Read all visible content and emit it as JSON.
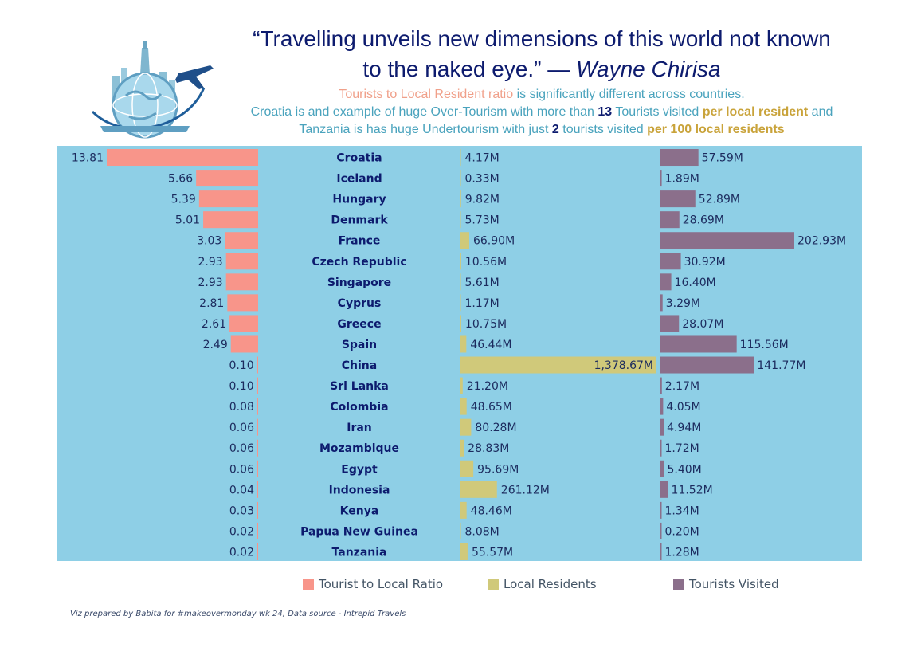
{
  "header": {
    "quote_line1": "“Travelling unveils new dimensions of this world not known",
    "quote_line2_text": "to the naked eye.”  —",
    "quote_author": "Wayne Chirisa",
    "sub_line1_highlight": "Tourists to Local Resident ratio",
    "sub_line1_rest": "is significantly different across countries.",
    "sub_line2_a": "Croatia is and example of huge Over-Tourism with more than",
    "sub_line2_num": "13",
    "sub_line2_b": "Tourists visited",
    "sub_line2_gold": "per local resident",
    "sub_line2_c": "and",
    "sub_line3_a": "Tanzania is has huge Undertourism with just",
    "sub_line3_num": "2",
    "sub_line3_b": "tourists visited",
    "sub_line3_gold": "per 100 local residents"
  },
  "logo": {
    "icon": "globe-airplane-icon"
  },
  "colors": {
    "panel": "#8ecfe6",
    "ratio": "#f8958a",
    "residents": "#d0c97a",
    "tourists": "#8b6f8b",
    "country_text": "#0d1b6e",
    "value_text": "#1c2b5e"
  },
  "chart_data": {
    "type": "bar",
    "categories": [
      "Croatia",
      "Iceland",
      "Hungary",
      "Denmark",
      "France",
      "Czech Republic",
      "Singapore",
      "Cyprus",
      "Greece",
      "Spain",
      "China",
      "Sri Lanka",
      "Colombia",
      "Iran",
      "Mozambique",
      "Egypt",
      "Indonesia",
      "Kenya",
      "Papua New Guinea",
      "Tanzania"
    ],
    "series": [
      {
        "name": "Tourist to Local Ratio",
        "values": [
          13.81,
          5.66,
          5.39,
          5.01,
          3.03,
          2.93,
          2.93,
          2.81,
          2.61,
          2.49,
          0.1,
          0.1,
          0.08,
          0.06,
          0.06,
          0.06,
          0.04,
          0.03,
          0.02,
          0.02
        ],
        "labels": [
          "13.81",
          "5.66",
          "5.39",
          "5.01",
          "3.03",
          "2.93",
          "2.93",
          "2.81",
          "2.61",
          "2.49",
          "0.10",
          "0.10",
          "0.08",
          "0.06",
          "0.06",
          "0.06",
          "0.04",
          "0.03",
          "0.02",
          "0.02"
        ]
      },
      {
        "name": "Local Residents",
        "unit": "M",
        "values": [
          4.17,
          0.33,
          9.82,
          5.73,
          66.9,
          10.56,
          5.61,
          1.17,
          10.75,
          46.44,
          1378.67,
          21.2,
          48.65,
          80.28,
          28.83,
          95.69,
          261.12,
          48.46,
          8.08,
          55.57
        ],
        "labels": [
          "4.17M",
          "0.33M",
          "9.82M",
          "5.73M",
          "66.90M",
          "10.56M",
          "5.61M",
          "1.17M",
          "10.75M",
          "46.44M",
          "1,378.67M",
          "21.20M",
          "48.65M",
          "80.28M",
          "28.83M",
          "95.69M",
          "261.12M",
          "48.46M",
          "8.08M",
          "55.57M"
        ]
      },
      {
        "name": "Tourists Visited",
        "unit": "M",
        "values": [
          57.59,
          1.89,
          52.89,
          28.69,
          202.93,
          30.92,
          16.4,
          3.29,
          28.07,
          115.56,
          141.77,
          2.17,
          4.05,
          4.94,
          1.72,
          5.4,
          11.52,
          1.34,
          0.2,
          1.28
        ],
        "labels": [
          "57.59M",
          "1.89M",
          "52.89M",
          "28.69M",
          "202.93M",
          "30.92M",
          "16.40M",
          "3.29M",
          "28.07M",
          "115.56M",
          "141.77M",
          "2.17M",
          "4.05M",
          "4.94M",
          "1.72M",
          "5.40M",
          "11.52M",
          "1.34M",
          "0.20M",
          "1.28M"
        ]
      }
    ],
    "legend_position": "bottom",
    "grid": false
  },
  "legend": [
    {
      "label": "Tourist to Local Ratio"
    },
    {
      "label": "Local Residents"
    },
    {
      "label": "Tourists Visited"
    }
  ],
  "footer": {
    "text": "Viz prepared by Babita for #makeovermonday wk 24, Data source - Intrepid Travels"
  }
}
